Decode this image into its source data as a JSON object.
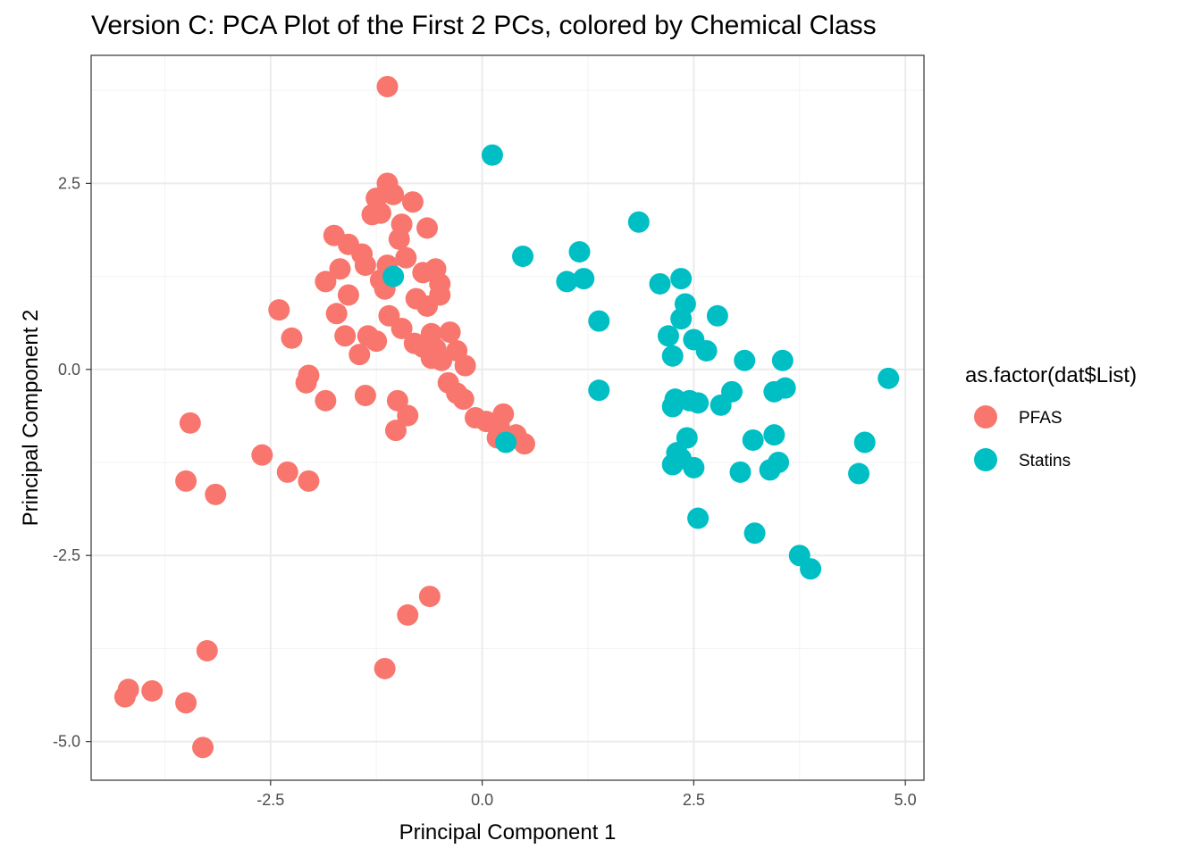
{
  "chart_data": {
    "type": "scatter",
    "title": "Version C: PCA Plot of the First 2 PCs, colored by Chemical Class",
    "xlabel": "Principal Component 1",
    "ylabel": "Principal Component 2",
    "xlim": [
      -4.62,
      5.22
    ],
    "ylim": [
      -5.52,
      4.22
    ],
    "x_ticks": [
      -2.5,
      0.0,
      2.5,
      5.0
    ],
    "x_tick_labels": [
      "-2.5",
      "0.0",
      "2.5",
      "5.0"
    ],
    "y_ticks": [
      -5.0,
      -2.5,
      0.0,
      2.5
    ],
    "y_tick_labels": [
      "-5.0",
      "-2.5",
      "0.0",
      "2.5"
    ],
    "grid": true,
    "legend": {
      "title": "as.factor(dat$List)",
      "placement": "right"
    },
    "series": [
      {
        "name": "PFAS",
        "color": "#F8766D",
        "points": [
          [
            -1.12,
            3.8
          ],
          [
            -1.12,
            2.5
          ],
          [
            -1.25,
            2.3
          ],
          [
            -1.05,
            2.35
          ],
          [
            -0.82,
            2.25
          ],
          [
            -1.3,
            2.08
          ],
          [
            -1.2,
            2.1
          ],
          [
            -0.95,
            1.95
          ],
          [
            -0.65,
            1.9
          ],
          [
            -1.75,
            1.8
          ],
          [
            -1.58,
            1.68
          ],
          [
            -0.98,
            1.75
          ],
          [
            -1.42,
            1.55
          ],
          [
            -1.38,
            1.4
          ],
          [
            -0.9,
            1.5
          ],
          [
            -1.68,
            1.35
          ],
          [
            -1.12,
            1.4
          ],
          [
            -0.7,
            1.3
          ],
          [
            -0.55,
            1.35
          ],
          [
            -1.85,
            1.18
          ],
          [
            -1.2,
            1.2
          ],
          [
            -1.15,
            1.08
          ],
          [
            -0.5,
            1.15
          ],
          [
            -0.78,
            0.95
          ],
          [
            -0.5,
            1.0
          ],
          [
            -1.58,
            1.0
          ],
          [
            -0.65,
            0.85
          ],
          [
            -2.4,
            0.8
          ],
          [
            -1.72,
            0.75
          ],
          [
            -1.1,
            0.72
          ],
          [
            -0.95,
            0.55
          ],
          [
            -0.6,
            0.48
          ],
          [
            -1.35,
            0.45
          ],
          [
            -1.62,
            0.45
          ],
          [
            -0.38,
            0.5
          ],
          [
            -2.25,
            0.42
          ],
          [
            -1.25,
            0.38
          ],
          [
            -0.8,
            0.35
          ],
          [
            -0.7,
            0.3
          ],
          [
            -0.55,
            0.28
          ],
          [
            -0.3,
            0.25
          ],
          [
            -1.45,
            0.2
          ],
          [
            -0.6,
            0.15
          ],
          [
            -0.48,
            0.12
          ],
          [
            -0.2,
            0.05
          ],
          [
            -2.05,
            -0.08
          ],
          [
            -2.08,
            -0.18
          ],
          [
            -0.4,
            -0.18
          ],
          [
            -0.3,
            -0.32
          ],
          [
            -1.38,
            -0.35
          ],
          [
            -0.22,
            -0.4
          ],
          [
            -1.85,
            -0.42
          ],
          [
            -1.0,
            -0.42
          ],
          [
            -0.88,
            -0.62
          ],
          [
            -0.08,
            -0.65
          ],
          [
            0.05,
            -0.7
          ],
          [
            -3.45,
            -0.72
          ],
          [
            0.25,
            -0.6
          ],
          [
            0.2,
            -0.75
          ],
          [
            -1.02,
            -0.82
          ],
          [
            0.4,
            -0.88
          ],
          [
            0.18,
            -0.92
          ],
          [
            0.5,
            -1.0
          ],
          [
            -2.6,
            -1.15
          ],
          [
            -2.3,
            -1.38
          ],
          [
            -3.5,
            -1.5
          ],
          [
            -2.05,
            -1.5
          ],
          [
            -3.15,
            -1.68
          ],
          [
            -0.62,
            -3.05
          ],
          [
            -0.88,
            -3.3
          ],
          [
            -3.25,
            -3.78
          ],
          [
            -1.15,
            -4.02
          ],
          [
            -4.18,
            -4.3
          ],
          [
            -3.9,
            -4.32
          ],
          [
            -4.22,
            -4.4
          ],
          [
            -3.5,
            -4.48
          ],
          [
            -3.3,
            -5.08
          ]
        ]
      },
      {
        "name": "Statins",
        "color": "#00BFC4",
        "points": [
          [
            0.12,
            2.88
          ],
          [
            1.85,
            1.98
          ],
          [
            1.15,
            1.58
          ],
          [
            0.48,
            1.52
          ],
          [
            1.2,
            1.22
          ],
          [
            1.0,
            1.18
          ],
          [
            -1.05,
            1.25
          ],
          [
            2.35,
            1.22
          ],
          [
            2.1,
            1.15
          ],
          [
            2.4,
            0.88
          ],
          [
            2.78,
            0.72
          ],
          [
            1.38,
            0.65
          ],
          [
            2.35,
            0.68
          ],
          [
            2.2,
            0.45
          ],
          [
            2.5,
            0.4
          ],
          [
            2.65,
            0.25
          ],
          [
            2.25,
            0.18
          ],
          [
            3.1,
            0.12
          ],
          [
            3.55,
            0.12
          ],
          [
            4.8,
            -0.12
          ],
          [
            1.38,
            -0.28
          ],
          [
            2.95,
            -0.3
          ],
          [
            3.45,
            -0.3
          ],
          [
            3.58,
            -0.25
          ],
          [
            2.28,
            -0.4
          ],
          [
            2.45,
            -0.42
          ],
          [
            2.55,
            -0.45
          ],
          [
            2.25,
            -0.5
          ],
          [
            2.82,
            -0.48
          ],
          [
            3.45,
            -0.88
          ],
          [
            3.2,
            -0.95
          ],
          [
            2.42,
            -0.92
          ],
          [
            4.52,
            -0.98
          ],
          [
            0.28,
            -0.98
          ],
          [
            2.3,
            -1.12
          ],
          [
            2.35,
            -1.2
          ],
          [
            3.5,
            -1.25
          ],
          [
            2.25,
            -1.28
          ],
          [
            2.5,
            -1.32
          ],
          [
            3.4,
            -1.35
          ],
          [
            3.05,
            -1.38
          ],
          [
            4.45,
            -1.4
          ],
          [
            2.55,
            -2.0
          ],
          [
            3.22,
            -2.2
          ],
          [
            3.75,
            -2.5
          ],
          [
            3.88,
            -2.68
          ]
        ]
      }
    ]
  }
}
